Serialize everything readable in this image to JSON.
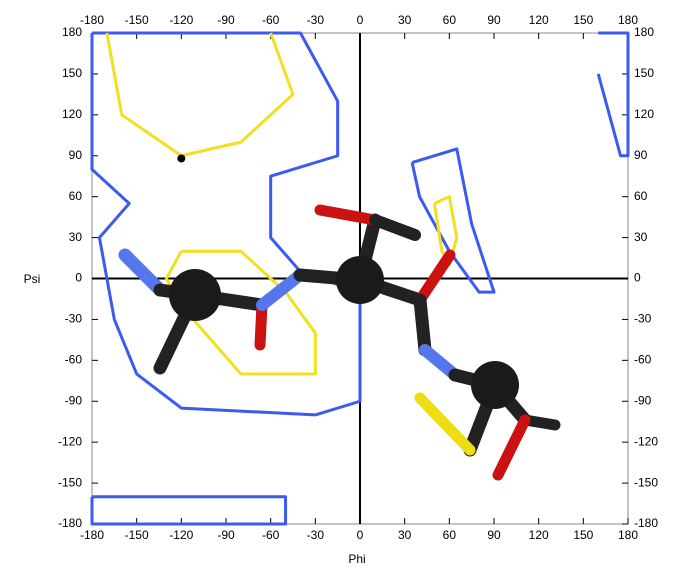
{
  "chart_data": {
    "type": "contour",
    "xlabel": "Phi",
    "ylabel": "Psi",
    "xlim": [
      -180,
      180
    ],
    "ylim": [
      -180,
      180
    ],
    "xticks": [
      -180,
      -150,
      -120,
      -90,
      -60,
      -30,
      0,
      30,
      60,
      90,
      120,
      150,
      180
    ],
    "yticks": [
      -180,
      -150,
      -120,
      -90,
      -60,
      -30,
      0,
      30,
      60,
      90,
      120,
      150,
      180
    ],
    "series": [
      {
        "color": "#3a5af0",
        "x": [
          -180,
          -40,
          -15,
          -15,
          -60,
          -60,
          -40,
          0,
          0,
          0,
          -30,
          -120,
          -150,
          -165,
          -175,
          -155,
          -180,
          -180
        ],
        "values": [
          180,
          180,
          130,
          90,
          75,
          30,
          5,
          -10,
          -45,
          -90,
          -100,
          -95,
          -70,
          -30,
          30,
          55,
          80,
          180
        ]
      },
      {
        "color": "#3a5af0",
        "x": [
          -180,
          -50,
          -50,
          -180,
          -180
        ],
        "values": [
          -160,
          -160,
          -180,
          -180,
          -160
        ]
      },
      {
        "color": "#3a5af0",
        "x": [
          35,
          65,
          75,
          90,
          80,
          60,
          40,
          35
        ],
        "values": [
          85,
          95,
          40,
          -10,
          -10,
          20,
          60,
          85
        ]
      },
      {
        "color": "#3a5af0",
        "x": [
          160,
          170,
          180,
          180,
          175,
          160
        ],
        "values": [
          180,
          180,
          180,
          90,
          90,
          150
        ]
      },
      {
        "color": "#f0e020",
        "x": [
          -170,
          -160,
          -120,
          -80,
          -45,
          -60
        ],
        "values": [
          180,
          120,
          90,
          100,
          135,
          180
        ]
      },
      {
        "color": "#f0e020",
        "x": [
          -120,
          -80,
          -50,
          -30,
          -30,
          -80,
          -120,
          -130,
          -120
        ],
        "values": [
          20,
          20,
          -10,
          -40,
          -70,
          -70,
          -20,
          0,
          20
        ]
      },
      {
        "color": "#f0e020",
        "x": [
          50,
          60,
          65,
          60,
          55,
          50
        ],
        "values": [
          55,
          60,
          30,
          10,
          20,
          55
        ]
      }
    ],
    "points": {
      "color": "#000000",
      "x": [
        -120
      ],
      "values": [
        88
      ]
    }
  }
}
